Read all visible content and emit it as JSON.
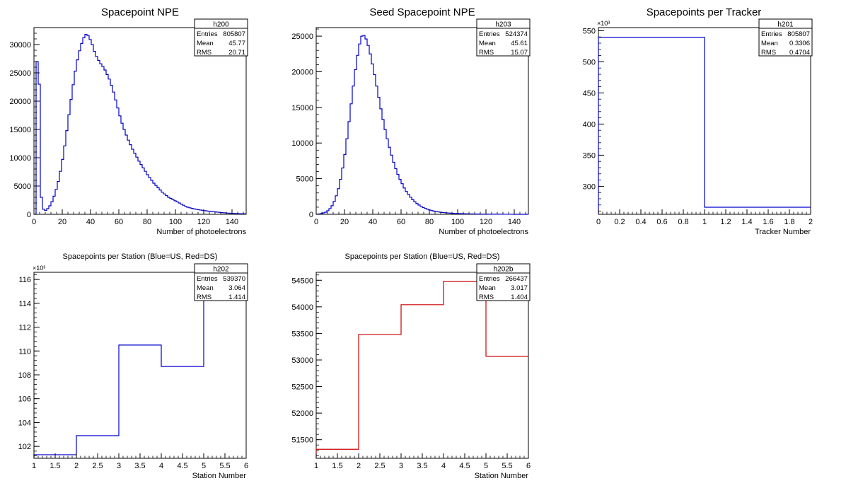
{
  "chart_data": [
    {
      "type": "histogram",
      "title": "Spacepoint NPE",
      "xlabel": "Number of photoelectrons",
      "ylabel": "",
      "xlim": [
        0,
        150
      ],
      "ylim": [
        0,
        33000
      ],
      "xticks": [
        0,
        20,
        40,
        60,
        80,
        100,
        120,
        140
      ],
      "yticks": [
        0,
        5000,
        10000,
        15000,
        20000,
        25000,
        30000
      ],
      "bin_width": 1.5,
      "line_color": "#0000cc",
      "stats": {
        "name": "h200",
        "rows": [
          [
            "Entries",
            "805807"
          ],
          [
            "Mean",
            "45.77"
          ],
          [
            "RMS",
            "20.71"
          ]
        ]
      },
      "values": [
        0,
        27000,
        23000,
        3000,
        900,
        700,
        1000,
        1500,
        2200,
        3200,
        4400,
        5800,
        7600,
        9700,
        12100,
        14800,
        17600,
        20300,
        22900,
        25300,
        27300,
        28900,
        30200,
        31200,
        31800,
        31600,
        30900,
        30000,
        28800,
        27900,
        27200,
        26600,
        26100,
        25500,
        24700,
        23900,
        22800,
        21600,
        20200,
        18800,
        17400,
        16100,
        15000,
        14000,
        13100,
        12300,
        11500,
        10800,
        10100,
        9400,
        8800,
        8200,
        7600,
        7000,
        6500,
        6000,
        5500,
        5100,
        4700,
        4300,
        3900,
        3600,
        3300,
        3000,
        2800,
        2600,
        2400,
        2200,
        2000,
        1800,
        1600,
        1400,
        1250,
        1150,
        1050,
        950,
        880,
        820,
        760,
        700,
        640,
        590,
        540,
        500,
        460,
        420,
        380,
        340,
        300,
        270,
        240,
        210,
        190,
        170,
        150,
        130,
        115,
        100,
        90,
        80
      ]
    },
    {
      "type": "histogram",
      "title": "Seed Spacepoint NPE",
      "xlabel": "Number of photoelectrons",
      "ylabel": "",
      "xlim": [
        0,
        150
      ],
      "ylim": [
        0,
        26200
      ],
      "xticks": [
        0,
        20,
        40,
        60,
        80,
        100,
        120,
        140
      ],
      "yticks": [
        0,
        5000,
        10000,
        15000,
        20000,
        25000
      ],
      "bin_width": 1.5,
      "line_color": "#0000cc",
      "stats": {
        "name": "h203",
        "rows": [
          [
            "Entries",
            "524374"
          ],
          [
            "Mean",
            "45.61"
          ],
          [
            "RMS",
            "15.07"
          ]
        ]
      },
      "values": [
        0,
        50,
        100,
        200,
        300,
        500,
        800,
        1200,
        1800,
        2600,
        3600,
        4900,
        6500,
        8400,
        10600,
        13000,
        15500,
        18000,
        20300,
        22300,
        23900,
        25000,
        25100,
        24600,
        23700,
        22500,
        21100,
        19600,
        18000,
        16400,
        14800,
        13300,
        11900,
        10600,
        9400,
        8300,
        7300,
        6400,
        5600,
        4900,
        4300,
        3700,
        3200,
        2800,
        2400,
        2050,
        1750,
        1500,
        1300,
        1100,
        950,
        820,
        700,
        600,
        520,
        450,
        390,
        340,
        300,
        260,
        230,
        200,
        180,
        160,
        140,
        120,
        110,
        100,
        90,
        80,
        70,
        60,
        55,
        50,
        45,
        40,
        35,
        30,
        28,
        25,
        22,
        20,
        18,
        16,
        14,
        12,
        10,
        9,
        8,
        7,
        6,
        5,
        4,
        3,
        3,
        2,
        2,
        1,
        1,
        1
      ]
    },
    {
      "type": "histogram",
      "title": "Spacepoints per Tracker",
      "xlabel": "Tracker Number",
      "ylabel": "",
      "multiplier": "×10³",
      "xlim": [
        0,
        2
      ],
      "ylim": [
        255,
        555
      ],
      "xticks": [
        0,
        0.2,
        0.4,
        0.6,
        0.8,
        1,
        1.2,
        1.4,
        1.6,
        1.8,
        2
      ],
      "yticks": [
        300,
        350,
        400,
        450,
        500,
        550
      ],
      "bin_edges": [
        0,
        1,
        2
      ],
      "values": [
        539.4,
        266.4
      ],
      "line_color": "#0000cc",
      "stats": {
        "name": "h201",
        "rows": [
          [
            "Entries",
            "805807"
          ],
          [
            "Mean",
            "0.3306"
          ],
          [
            "RMS",
            "0.4704"
          ]
        ]
      }
    },
    {
      "type": "histogram",
      "title": "Spacepoints per Station (Blue=US, Red=DS)",
      "xlabel": "Station Number",
      "ylabel": "",
      "multiplier": "×10³",
      "xlim": [
        1,
        6
      ],
      "ylim": [
        101,
        116.6
      ],
      "xticks": [
        1,
        1.5,
        2,
        2.5,
        3,
        3.5,
        4,
        4.5,
        5,
        5.5,
        6
      ],
      "yticks": [
        102,
        104,
        106,
        108,
        110,
        112,
        114,
        116
      ],
      "bin_edges": [
        1,
        2,
        3,
        4,
        5,
        6
      ],
      "values": [
        101.3,
        102.9,
        110.5,
        108.7,
        115.8
      ],
      "line_color": "#0000cc",
      "stats": {
        "name": "h202",
        "rows": [
          [
            "Entries",
            "539370"
          ],
          [
            "Mean",
            "3.064"
          ],
          [
            "RMS",
            "1.414"
          ]
        ]
      }
    },
    {
      "type": "histogram",
      "title": "Spacepoints per Station (Blue=US, Red=DS)",
      "xlabel": "Station Number",
      "ylabel": "",
      "xlim": [
        1,
        6
      ],
      "ylim": [
        51150,
        54650
      ],
      "xticks": [
        1,
        1.5,
        2,
        2.5,
        3,
        3.5,
        4,
        4.5,
        5,
        5.5,
        6
      ],
      "yticks": [
        51500,
        52000,
        52500,
        53000,
        53500,
        54000,
        54500
      ],
      "bin_edges": [
        1,
        2,
        3,
        4,
        5,
        6
      ],
      "values": [
        51320,
        53480,
        54040,
        54480,
        53070
      ],
      "line_color": "#cc0000",
      "stats": {
        "name": "h202b",
        "rows": [
          [
            "Entries",
            "266437"
          ],
          [
            "Mean",
            "3.017"
          ],
          [
            "RMS",
            "1.404"
          ]
        ]
      }
    }
  ]
}
